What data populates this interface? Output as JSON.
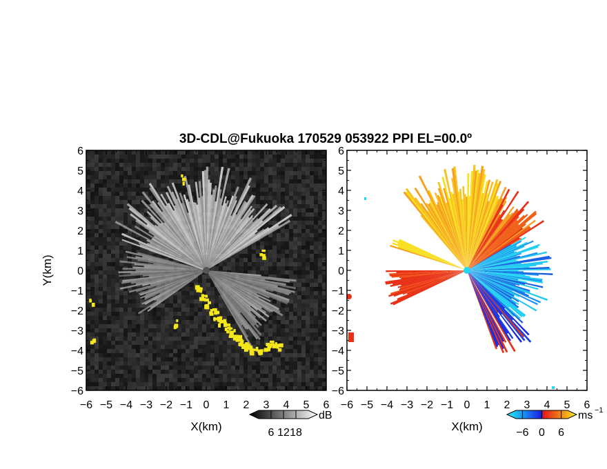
{
  "title": "3D-CDL@Fukuoka 170529 053922 PPI EL=00.0º",
  "colors": {
    "background": "#ffffff",
    "left_panel_bg": "#222222",
    "right_panel_bg": "#ffffff",
    "highlight": "#f5e81a",
    "cyan": "#22d8f0",
    "blue": "#1a2ee0",
    "red": "#e83016",
    "orange": "#f6a020",
    "yellow": "#f8e020"
  },
  "chart_data": [
    {
      "type": "heatmap",
      "panel": "left",
      "xlabel": "X(km)",
      "ylabel": "Y(km)",
      "xlim": [
        -6,
        6
      ],
      "ylim": [
        -6,
        6
      ],
      "xticks": [
        "−6",
        "−5",
        "−4",
        "−3",
        "−2",
        "−1",
        "0",
        "1",
        "2",
        "3",
        "4",
        "5",
        "6"
      ],
      "yticks": [
        "6",
        "5",
        "4",
        "3",
        "2",
        "1",
        "0",
        "−1",
        "−2",
        "−3",
        "−4",
        "−5",
        "−6"
      ],
      "colorbar": {
        "unit": "dB",
        "tick_labels": [
          "6",
          "12",
          "18"
        ],
        "colormap": "grayscale",
        "range": [
          0,
          24
        ]
      },
      "features": [
        {
          "kind": "fan",
          "angle_range_deg": [
            30,
            160
          ],
          "radius_km": 5,
          "description_value": "bright"
        },
        {
          "kind": "fan",
          "angle_range_deg": [
            -60,
            -5
          ],
          "radius_km": 4.5,
          "description_value": "medium"
        },
        {
          "kind": "fan",
          "angle_range_deg": [
            165,
            215
          ],
          "radius_km": 4.2,
          "description_value": "medium"
        }
      ]
    },
    {
      "type": "heatmap",
      "panel": "right",
      "xlabel": "X(km)",
      "xlim": [
        -6,
        6
      ],
      "ylim": [
        -6,
        6
      ],
      "xticks": [
        "−6",
        "−5",
        "−4",
        "−3",
        "−2",
        "−1",
        "0",
        "1",
        "2",
        "3",
        "4",
        "5",
        "6"
      ],
      "yticks": [
        "6",
        "5",
        "4",
        "3",
        "2",
        "1",
        "0",
        "−1",
        "−2",
        "−3",
        "−4",
        "−5",
        "−6"
      ],
      "colorbar": {
        "unit": "ms",
        "unit_exponent": "−1",
        "tick_labels": [
          "−6",
          "0",
          "6"
        ],
        "colormap": "diverging cyan-blue-red-yellow",
        "range": [
          -8,
          8
        ]
      }
    }
  ]
}
